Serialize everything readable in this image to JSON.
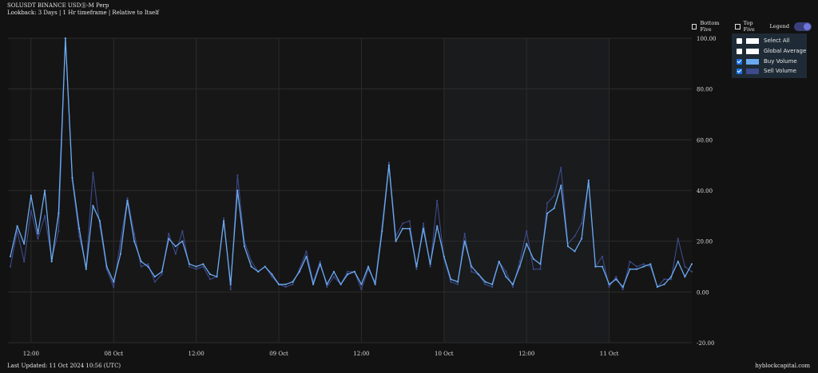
{
  "header": {
    "title": "SOLUSDT BINANCE USDⓈ-M Perp",
    "subtitle": "Lookback: 3 Days | 1 Hr timeframe | Relative to Itself"
  },
  "toggles": {
    "bottom_five": "Bottom Five",
    "top_five": "Top Five",
    "legend": "Legend"
  },
  "legend": {
    "items": [
      {
        "label": "Select All",
        "checked": false,
        "color": "#ffffff"
      },
      {
        "label": "Global Average",
        "checked": false,
        "color": "#ffffff"
      },
      {
        "label": "Buy Volume",
        "checked": true,
        "color": "#6aaaf0"
      },
      {
        "label": "Sell Volume",
        "checked": true,
        "color": "#3d4a8c"
      }
    ]
  },
  "footer": {
    "updated": "Last Updated: 11 Oct 2024 10:56 (UTC)",
    "brand": "hyblockcapital.com"
  },
  "colors": {
    "background": "#121212",
    "grid": "#2a2a2a",
    "buy": "#6aaaf0",
    "sell": "#3d4a8c"
  },
  "chart_data": {
    "type": "line",
    "ylim": [
      -20,
      100
    ],
    "yticks": [
      "-20.00",
      "0.00",
      "20.00",
      "40.00",
      "60.00",
      "80.00",
      "100.00"
    ],
    "xticks": [
      {
        "label": "12:00",
        "hour": 10
      },
      {
        "label": "08 Oct",
        "hour": 22
      },
      {
        "label": "12:00",
        "hour": 34
      },
      {
        "label": "09 Oct",
        "hour": 46
      },
      {
        "label": "12:00",
        "hour": 58
      },
      {
        "label": "10 Oct",
        "hour": 70
      },
      {
        "label": "12:00",
        "hour": 82
      },
      {
        "label": "11 Oct",
        "hour": 94
      }
    ],
    "x_start_hour": 7,
    "series": [
      {
        "name": "Buy Volume",
        "values": [
          14,
          26,
          19,
          38,
          23,
          40,
          12,
          31,
          100,
          45,
          25,
          9,
          34,
          28,
          10,
          4,
          15,
          36,
          20,
          12,
          10,
          6,
          8,
          21,
          18,
          20,
          11,
          10,
          11,
          7,
          6,
          28,
          3,
          40,
          18,
          10,
          8,
          10,
          7,
          3,
          3,
          4,
          8,
          14,
          3,
          11,
          3,
          8,
          3,
          7,
          8,
          3,
          10,
          3,
          24,
          50,
          20,
          25,
          25,
          10,
          25,
          11,
          26,
          14,
          5,
          4,
          20,
          10,
          7,
          4,
          3,
          12,
          6,
          3,
          10,
          19,
          13,
          11,
          31,
          33,
          42,
          18,
          16,
          21,
          44,
          10,
          10,
          3,
          5,
          2,
          9,
          9,
          10,
          11,
          2,
          3,
          6,
          12,
          6,
          11
        ]
      },
      {
        "name": "Sell Volume",
        "values": [
          10,
          24,
          12,
          32,
          21,
          30,
          13,
          24,
          100,
          44,
          22,
          10,
          47,
          26,
          9,
          2,
          20,
          37,
          23,
          10,
          11,
          4,
          7,
          23,
          15,
          24,
          10,
          9,
          10,
          5,
          6,
          29,
          1,
          46,
          20,
          12,
          8,
          10,
          6,
          3,
          2,
          3,
          9,
          16,
          4,
          12,
          2,
          6,
          3,
          8,
          8,
          1,
          9,
          4,
          26,
          51,
          22,
          27,
          28,
          9,
          27,
          10,
          36,
          13,
          4,
          3,
          23,
          8,
          7,
          3,
          2,
          12,
          8,
          2,
          12,
          24,
          9,
          9,
          35,
          38,
          49,
          19,
          22,
          27,
          43,
          10,
          14,
          2,
          6,
          1,
          12,
          10,
          11,
          10,
          2,
          5,
          5,
          21,
          10,
          8
        ]
      }
    ]
  }
}
